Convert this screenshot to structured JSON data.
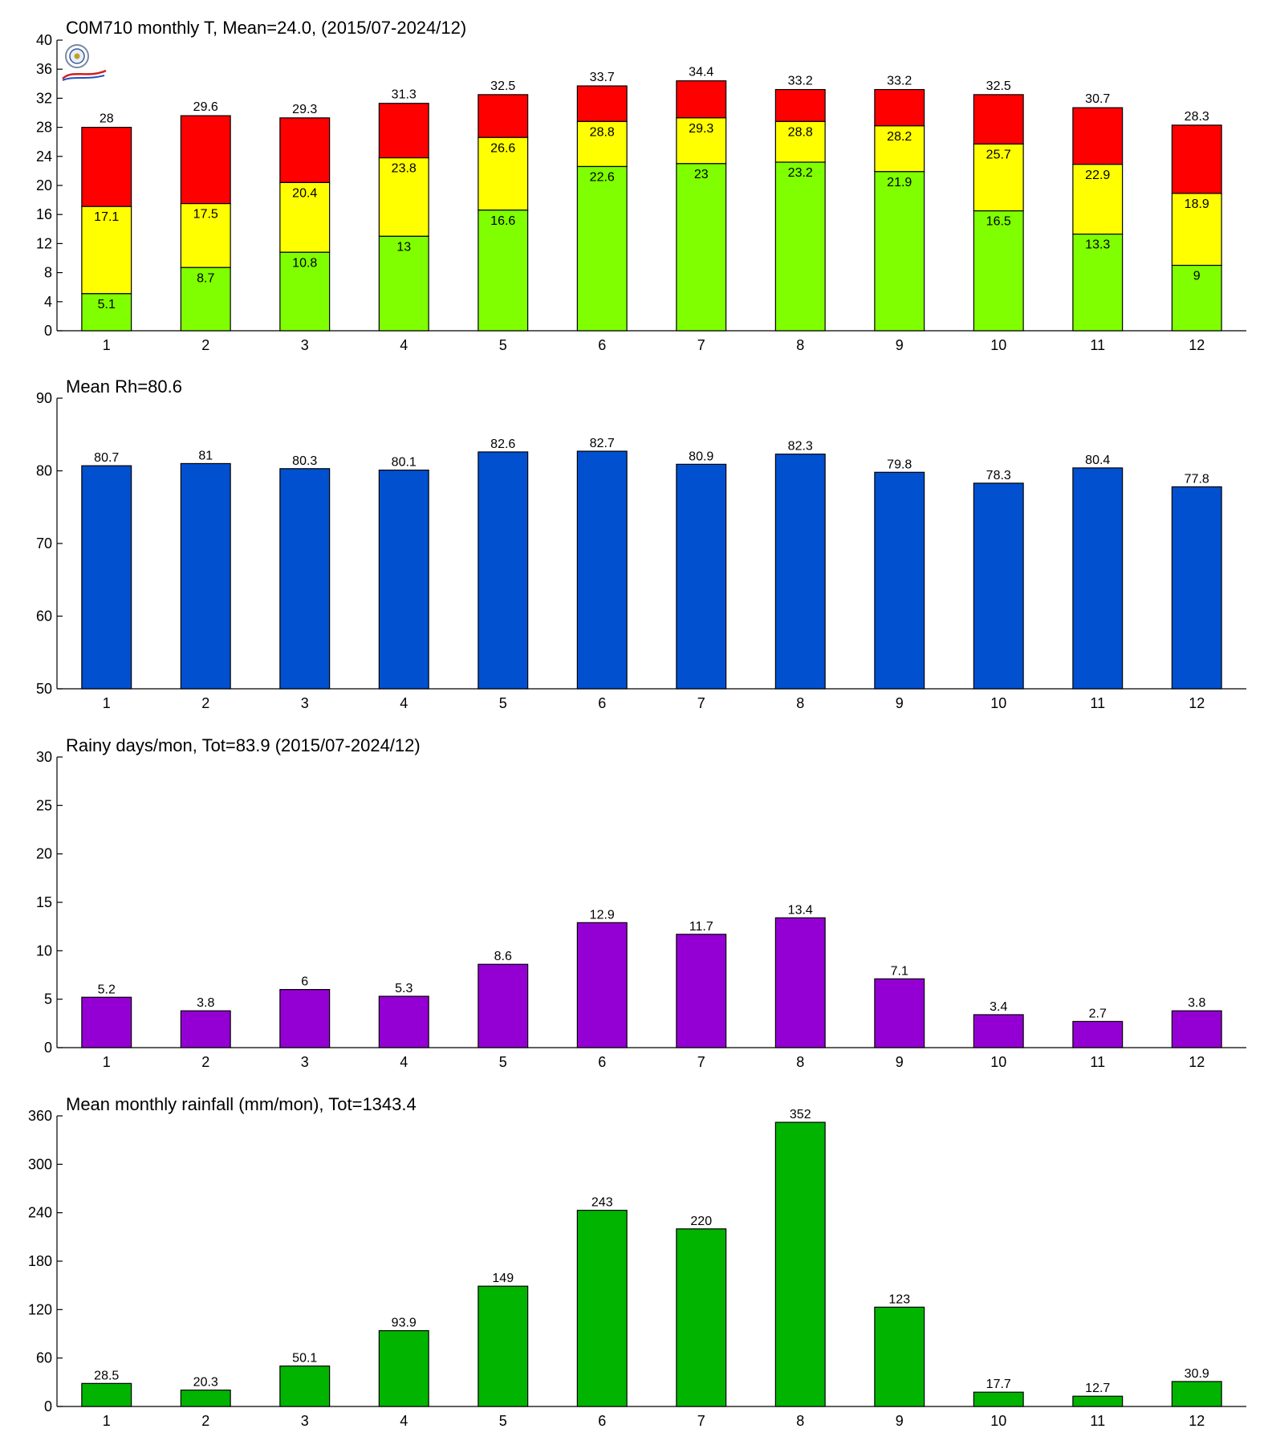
{
  "chart_data": [
    {
      "type": "bar",
      "stacked": true,
      "title": "C0M710 monthly T, Mean=24.0, (2015/07-2024/12)",
      "xlabel": "",
      "ylabel": "",
      "categories": [
        "1",
        "2",
        "3",
        "4",
        "5",
        "6",
        "7",
        "8",
        "9",
        "10",
        "11",
        "12"
      ],
      "ylim": [
        0,
        40
      ],
      "yticks": [
        "0",
        "4",
        "8",
        "12",
        "16",
        "20",
        "24",
        "28",
        "32",
        "36",
        "40"
      ],
      "grid": false,
      "logo": "station-logo",
      "colors": {
        "low": "#7fff00",
        "mean": "#ffff00",
        "high": "#ff0000"
      },
      "low": [
        5.1,
        8.7,
        10.8,
        13,
        16.6,
        22.6,
        23,
        23.2,
        21.9,
        16.5,
        13.3,
        9
      ],
      "mean": [
        17.1,
        17.5,
        20.4,
        23.8,
        26.6,
        28.8,
        29.3,
        28.8,
        28.2,
        25.7,
        22.9,
        18.9
      ],
      "high": [
        28,
        29.6,
        29.3,
        31.3,
        32.5,
        33.7,
        34.4,
        33.2,
        33.2,
        32.5,
        30.7,
        28.3
      ]
    },
    {
      "type": "bar",
      "title": "Mean Rh=80.6",
      "xlabel": "",
      "ylabel": "",
      "categories": [
        "1",
        "2",
        "3",
        "4",
        "5",
        "6",
        "7",
        "8",
        "9",
        "10",
        "11",
        "12"
      ],
      "ylim": [
        50,
        90
      ],
      "yticks": [
        "50",
        "60",
        "70",
        "80",
        "90"
      ],
      "grid": false,
      "color": "#0050d0",
      "values": [
        80.7,
        81,
        80.3,
        80.1,
        82.6,
        82.7,
        80.9,
        82.3,
        79.8,
        78.3,
        80.4,
        77.8
      ]
    },
    {
      "type": "bar",
      "title": "Rainy days/mon, Tot=83.9 (2015/07-2024/12)",
      "xlabel": "",
      "ylabel": "",
      "categories": [
        "1",
        "2",
        "3",
        "4",
        "5",
        "6",
        "7",
        "8",
        "9",
        "10",
        "11",
        "12"
      ],
      "ylim": [
        0,
        30
      ],
      "yticks": [
        "0",
        "5",
        "10",
        "15",
        "20",
        "25",
        "30"
      ],
      "grid": false,
      "color": "#9400d3",
      "values": [
        5.2,
        3.8,
        6,
        5.3,
        8.6,
        12.9,
        11.7,
        13.4,
        7.1,
        3.4,
        2.7,
        3.8
      ]
    },
    {
      "type": "bar",
      "title": "Mean monthly rainfall (mm/mon), Tot=1343.4",
      "xlabel": "",
      "ylabel": "",
      "categories": [
        "1",
        "2",
        "3",
        "4",
        "5",
        "6",
        "7",
        "8",
        "9",
        "10",
        "11",
        "12"
      ],
      "ylim": [
        0,
        360
      ],
      "yticks": [
        "0",
        "60",
        "120",
        "180",
        "240",
        "300",
        "360"
      ],
      "grid": false,
      "color": "#00b400",
      "values": [
        28.5,
        20.3,
        50.1,
        93.9,
        149,
        243,
        220,
        352,
        123,
        17.7,
        12.7,
        30.9
      ]
    }
  ]
}
